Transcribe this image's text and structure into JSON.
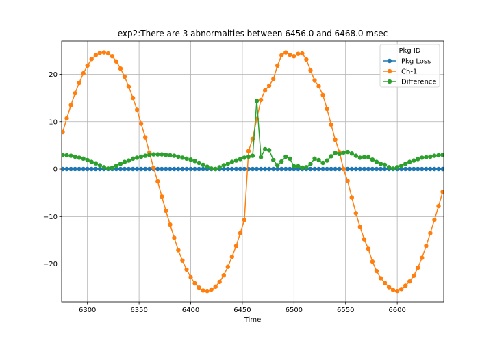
{
  "chart_data": {
    "type": "line",
    "title": "exp2:There are 3 abnormalties between 6456.0 and 6468.0 msec",
    "xlabel": "Time",
    "ylabel": "",
    "xlim": [
      6275,
      6645
    ],
    "ylim": [
      -28,
      27
    ],
    "x_ticks": [
      6300,
      6350,
      6400,
      6450,
      6500,
      6550,
      6600
    ],
    "y_ticks": [
      -20,
      -10,
      0,
      10,
      20
    ],
    "grid": true,
    "legend": {
      "title": "Pkg ID",
      "placement": "top-right"
    },
    "marker": "circle",
    "x_start": 6276,
    "x_step": 4,
    "series": [
      {
        "name": "Pkg Loss",
        "color": "#1f77b4",
        "values": [
          0,
          0,
          0,
          0,
          0,
          0,
          0,
          0,
          0,
          0,
          0,
          0,
          0,
          0,
          0,
          0,
          0,
          0,
          0,
          0,
          0,
          0,
          0,
          0,
          0,
          0,
          0,
          0,
          0,
          0,
          0,
          0,
          0,
          0,
          0,
          0,
          0,
          0,
          0,
          0,
          0,
          0,
          0,
          0,
          0,
          0,
          0,
          0,
          0,
          0,
          0,
          0,
          0,
          0,
          0,
          0,
          0,
          0,
          0,
          0,
          0,
          0,
          0,
          0,
          0,
          0,
          0,
          0,
          0,
          0,
          0,
          0,
          0,
          0,
          0,
          0,
          0,
          0,
          0,
          0,
          0,
          0,
          0,
          0,
          0,
          0,
          0,
          0,
          0,
          0,
          0,
          0,
          0
        ]
      },
      {
        "name": "Ch-1",
        "color": "#ff7f0e",
        "values": [
          7.8,
          10.7,
          13.5,
          16.0,
          18.2,
          20.2,
          21.8,
          23.2,
          24.0,
          24.5,
          24.6,
          24.4,
          23.8,
          22.7,
          21.2,
          19.5,
          17.4,
          15.0,
          12.5,
          9.6,
          6.7,
          3.5,
          0.3,
          -2.6,
          -5.8,
          -8.8,
          -11.7,
          -14.5,
          -17.1,
          -19.3,
          -21.2,
          -22.8,
          -24.1,
          -25.0,
          -25.6,
          -25.7,
          -25.4,
          -24.8,
          -23.8,
          -22.4,
          -20.6,
          -18.5,
          -16.2,
          -13.5,
          -10.7,
          3.8,
          6.4,
          10.6,
          14.6,
          16.6,
          17.6,
          19.0,
          21.8,
          24.0,
          24.6,
          24.1,
          23.8,
          24.3,
          24.4,
          23.1,
          20.8,
          18.7,
          17.5,
          15.6,
          12.7,
          9.4,
          6.2,
          3.6,
          0.0,
          -2.5,
          -6.0,
          -9.3,
          -12.2,
          -14.8,
          -16.8,
          -19.5,
          -21.5,
          -23.0,
          -24.0,
          -24.9,
          -25.5,
          -25.7,
          -25.3,
          -24.6,
          -23.7,
          -22.5,
          -20.8,
          -18.7,
          -16.2,
          -13.5,
          -10.7,
          -7.8,
          -4.8
        ]
      },
      {
        "name": "Difference",
        "color": "#2ca02c",
        "values": [
          3.0,
          2.9,
          2.8,
          2.6,
          2.4,
          2.2,
          1.9,
          1.5,
          1.2,
          0.8,
          0.4,
          0.1,
          0.3,
          0.7,
          1.1,
          1.5,
          1.8,
          2.2,
          2.4,
          2.6,
          2.8,
          3.0,
          3.1,
          3.1,
          3.1,
          3.0,
          2.9,
          2.8,
          2.6,
          2.4,
          2.2,
          2.0,
          1.7,
          1.3,
          0.9,
          0.5,
          0.1,
          0.0,
          0.4,
          0.8,
          1.1,
          1.5,
          1.8,
          2.1,
          2.4,
          2.6,
          2.8,
          14.4,
          2.5,
          4.2,
          4.0,
          1.9,
          0.8,
          1.6,
          2.6,
          2.2,
          0.6,
          0.6,
          0.3,
          0.4,
          1.1,
          2.2,
          1.9,
          1.3,
          1.8,
          2.7,
          3.4,
          3.2,
          3.5,
          3.6,
          3.3,
          2.8,
          2.4,
          2.5,
          2.5,
          2.0,
          1.5,
          1.1,
          0.9,
          0.4,
          0.1,
          0.4,
          0.7,
          1.1,
          1.5,
          1.8,
          2.1,
          2.4,
          2.5,
          2.6,
          2.8,
          2.9,
          3.0
        ]
      }
    ]
  }
}
